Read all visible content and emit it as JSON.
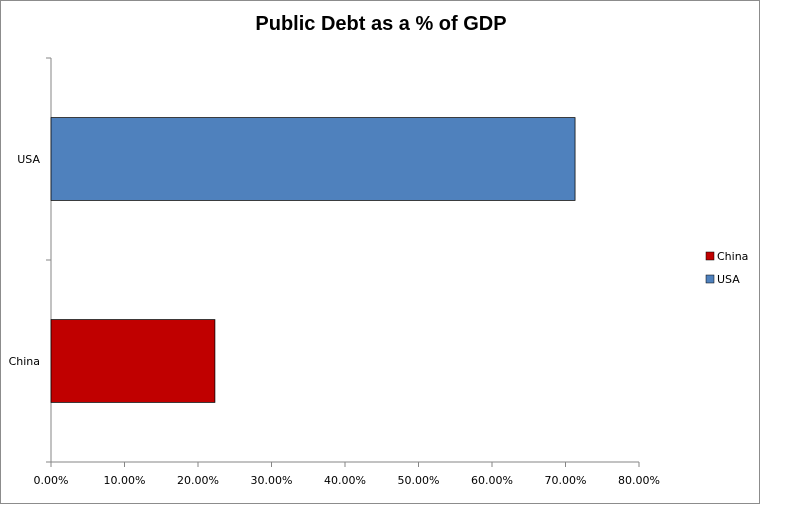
{
  "chart_data": {
    "type": "bar",
    "orientation": "horizontal",
    "title": "Public Debt as a % of GDP",
    "xlabel": "",
    "ylabel": "",
    "categories": [
      "China",
      "USA"
    ],
    "values": [
      22.3,
      71.3
    ],
    "colors": [
      "#c00000",
      "#4f81bd"
    ],
    "xlim": [
      0,
      80
    ],
    "x_ticks": [
      "0.00%",
      "10.00%",
      "20.00%",
      "30.00%",
      "40.00%",
      "50.00%",
      "60.00%",
      "70.00%",
      "80.00%"
    ],
    "grid": false,
    "legend": {
      "position": "right",
      "entries": [
        {
          "label": "China",
          "color": "#c00000"
        },
        {
          "label": "USA",
          "color": "#4f81bd"
        }
      ]
    }
  }
}
